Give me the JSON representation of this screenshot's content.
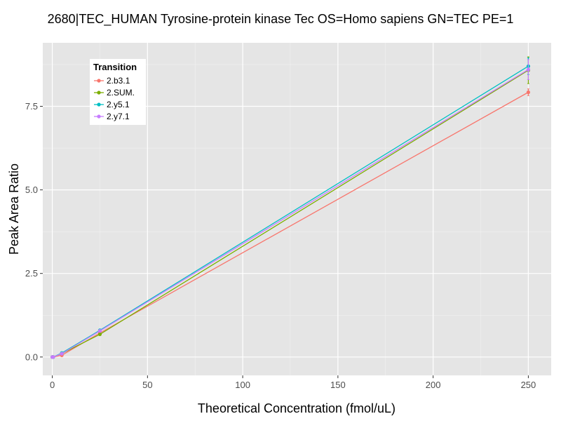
{
  "chart_data": {
    "type": "line",
    "title": "2680|TEC_HUMAN Tyrosine-protein kinase Tec OS=Homo sapiens GN=TEC PE=1",
    "xlabel": "Theoretical Concentration (fmol/uL)",
    "ylabel": "Peak Area Ratio",
    "xlim": [
      -5,
      262
    ],
    "ylim": [
      -0.55,
      9.4
    ],
    "x_ticks": [
      0,
      50,
      100,
      150,
      200,
      250
    ],
    "y_ticks": [
      0.0,
      2.5,
      5.0,
      7.5
    ],
    "x_tick_labels": [
      "0",
      "50",
      "100",
      "150",
      "200",
      "250"
    ],
    "y_tick_labels": [
      "0.0",
      "2.5",
      "5.0",
      "7.5"
    ],
    "grid": true,
    "legend": {
      "title": "Transition",
      "placement": "top-left"
    },
    "series": [
      {
        "name": "2.b3.1",
        "color": "#F8766D",
        "x": [
          0,
          0.5,
          5,
          25,
          250
        ],
        "y": [
          0.0,
          0.0,
          0.05,
          0.72,
          7.92
        ],
        "err": [
          0,
          0,
          0,
          0,
          0.1
        ]
      },
      {
        "name": "2.SUM.",
        "color": "#7CAE00",
        "x": [
          0,
          0.5,
          5,
          25,
          250
        ],
        "y": [
          0.0,
          0.0,
          0.1,
          0.68,
          8.58
        ],
        "err": [
          0,
          0,
          0,
          0,
          0.4
        ]
      },
      {
        "name": "2.y5.1",
        "color": "#00BFC4",
        "x": [
          0,
          0.5,
          5,
          25,
          250
        ],
        "y": [
          0.0,
          0.0,
          0.12,
          0.8,
          8.7
        ],
        "err": [
          0,
          0,
          0,
          0,
          0.25
        ]
      },
      {
        "name": "2.y7.1",
        "color": "#C77CFF",
        "x": [
          0,
          0.5,
          5,
          25,
          250
        ],
        "y": [
          0.0,
          0.0,
          0.1,
          0.78,
          8.6
        ],
        "err": [
          0,
          0,
          0,
          0,
          0.3
        ]
      }
    ]
  }
}
